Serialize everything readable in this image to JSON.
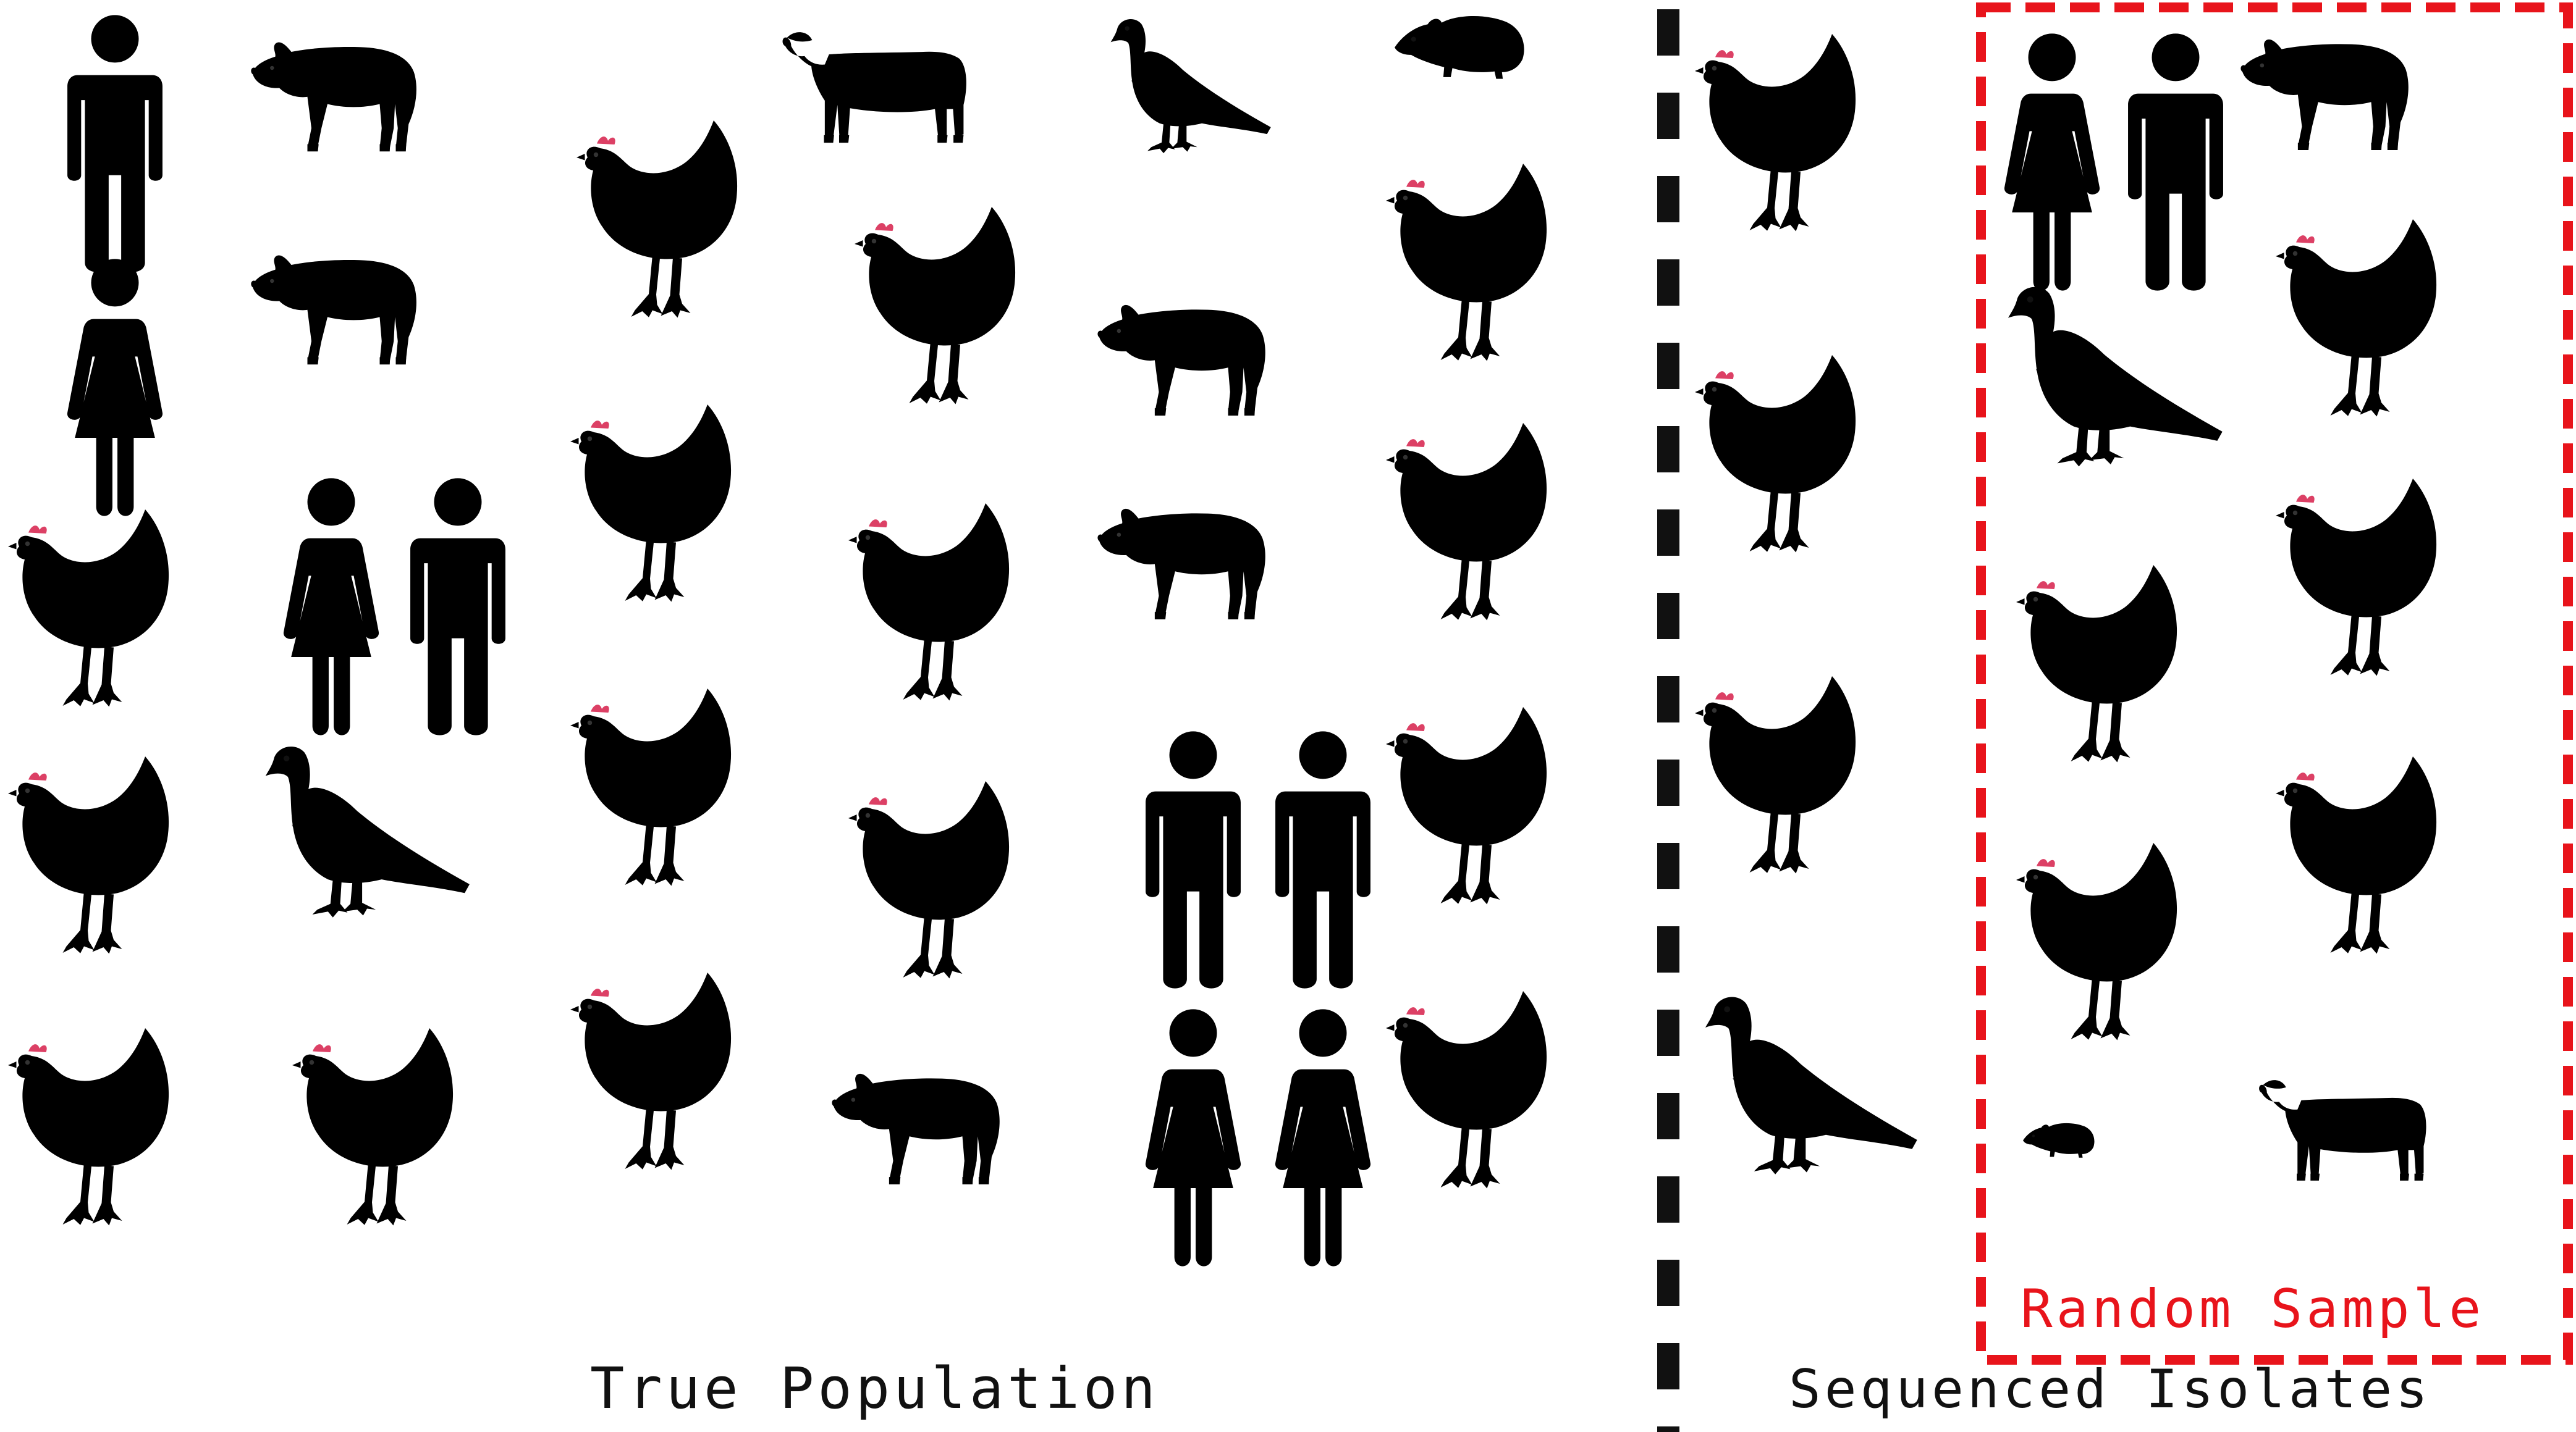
{
  "labels": {
    "true_population": "True Population",
    "sequenced_isolates": "Sequenced Isolates",
    "random_sample": "Random Sample"
  },
  "colors": {
    "pink": "#e8b4d6",
    "magenta": "#a3175e",
    "light_blue": "#b7cdee",
    "dark_blue": "#1d4f9c",
    "light_green": "#cfe8c6",
    "dark_green": "#2f7d24",
    "separator": "#111111",
    "sample_border": "#e8141b"
  },
  "groups": {
    "true_population": [
      {
        "kind": "man",
        "color": "magenta"
      },
      {
        "kind": "pig",
        "color": "pink"
      },
      {
        "kind": "cow",
        "color": "light_green"
      },
      {
        "kind": "pigeon",
        "color": "dark_blue"
      },
      {
        "kind": "rat",
        "color": "dark_green"
      },
      {
        "kind": "woman",
        "color": "dark_blue"
      },
      {
        "kind": "pig",
        "color": "pink"
      },
      {
        "kind": "chicken",
        "color": "light_green"
      },
      {
        "kind": "chicken",
        "color": "light_green"
      },
      {
        "kind": "pig",
        "color": "light_green"
      },
      {
        "kind": "chicken",
        "color": "pink"
      },
      {
        "kind": "chicken",
        "color": "pink"
      },
      {
        "kind": "woman",
        "color": "dark_blue"
      },
      {
        "kind": "man",
        "color": "dark_blue"
      },
      {
        "kind": "chicken",
        "color": "pink"
      },
      {
        "kind": "chicken",
        "color": "light_green"
      },
      {
        "kind": "pig",
        "color": "light_green"
      },
      {
        "kind": "chicken",
        "color": "pink"
      },
      {
        "kind": "chicken",
        "color": "light_blue"
      },
      {
        "kind": "pigeon",
        "color": "magenta"
      },
      {
        "kind": "chicken",
        "color": "light_green"
      },
      {
        "kind": "chicken",
        "color": "light_green"
      },
      {
        "kind": "man",
        "color": "magenta"
      },
      {
        "kind": "man",
        "color": "magenta"
      },
      {
        "kind": "chicken",
        "color": "pink"
      },
      {
        "kind": "chicken",
        "color": "light_blue"
      },
      {
        "kind": "chicken",
        "color": "light_blue"
      },
      {
        "kind": "chicken",
        "color": "light_green"
      },
      {
        "kind": "pig",
        "color": "light_green"
      },
      {
        "kind": "woman",
        "color": "dark_blue"
      },
      {
        "kind": "woman",
        "color": "magenta"
      },
      {
        "kind": "chicken",
        "color": "light_green"
      }
    ],
    "sequenced_isolates": [
      {
        "kind": "chicken",
        "color": "light_green"
      },
      {
        "kind": "chicken",
        "color": "light_green"
      },
      {
        "kind": "chicken",
        "color": "light_green"
      },
      {
        "kind": "pigeon",
        "color": "magenta"
      }
    ],
    "random_sample": [
      {
        "kind": "woman",
        "color": "dark_blue"
      },
      {
        "kind": "man",
        "color": "dark_blue"
      },
      {
        "kind": "pig",
        "color": "light_green"
      },
      {
        "kind": "pigeon",
        "color": "dark_blue"
      },
      {
        "kind": "chicken",
        "color": "light_blue"
      },
      {
        "kind": "chicken",
        "color": "light_blue"
      },
      {
        "kind": "chicken",
        "color": "light_green"
      },
      {
        "kind": "chicken",
        "color": "light_blue"
      },
      {
        "kind": "chicken",
        "color": "light_green"
      },
      {
        "kind": "rat",
        "color": "dark_green"
      },
      {
        "kind": "cow",
        "color": "light_green"
      }
    ]
  }
}
